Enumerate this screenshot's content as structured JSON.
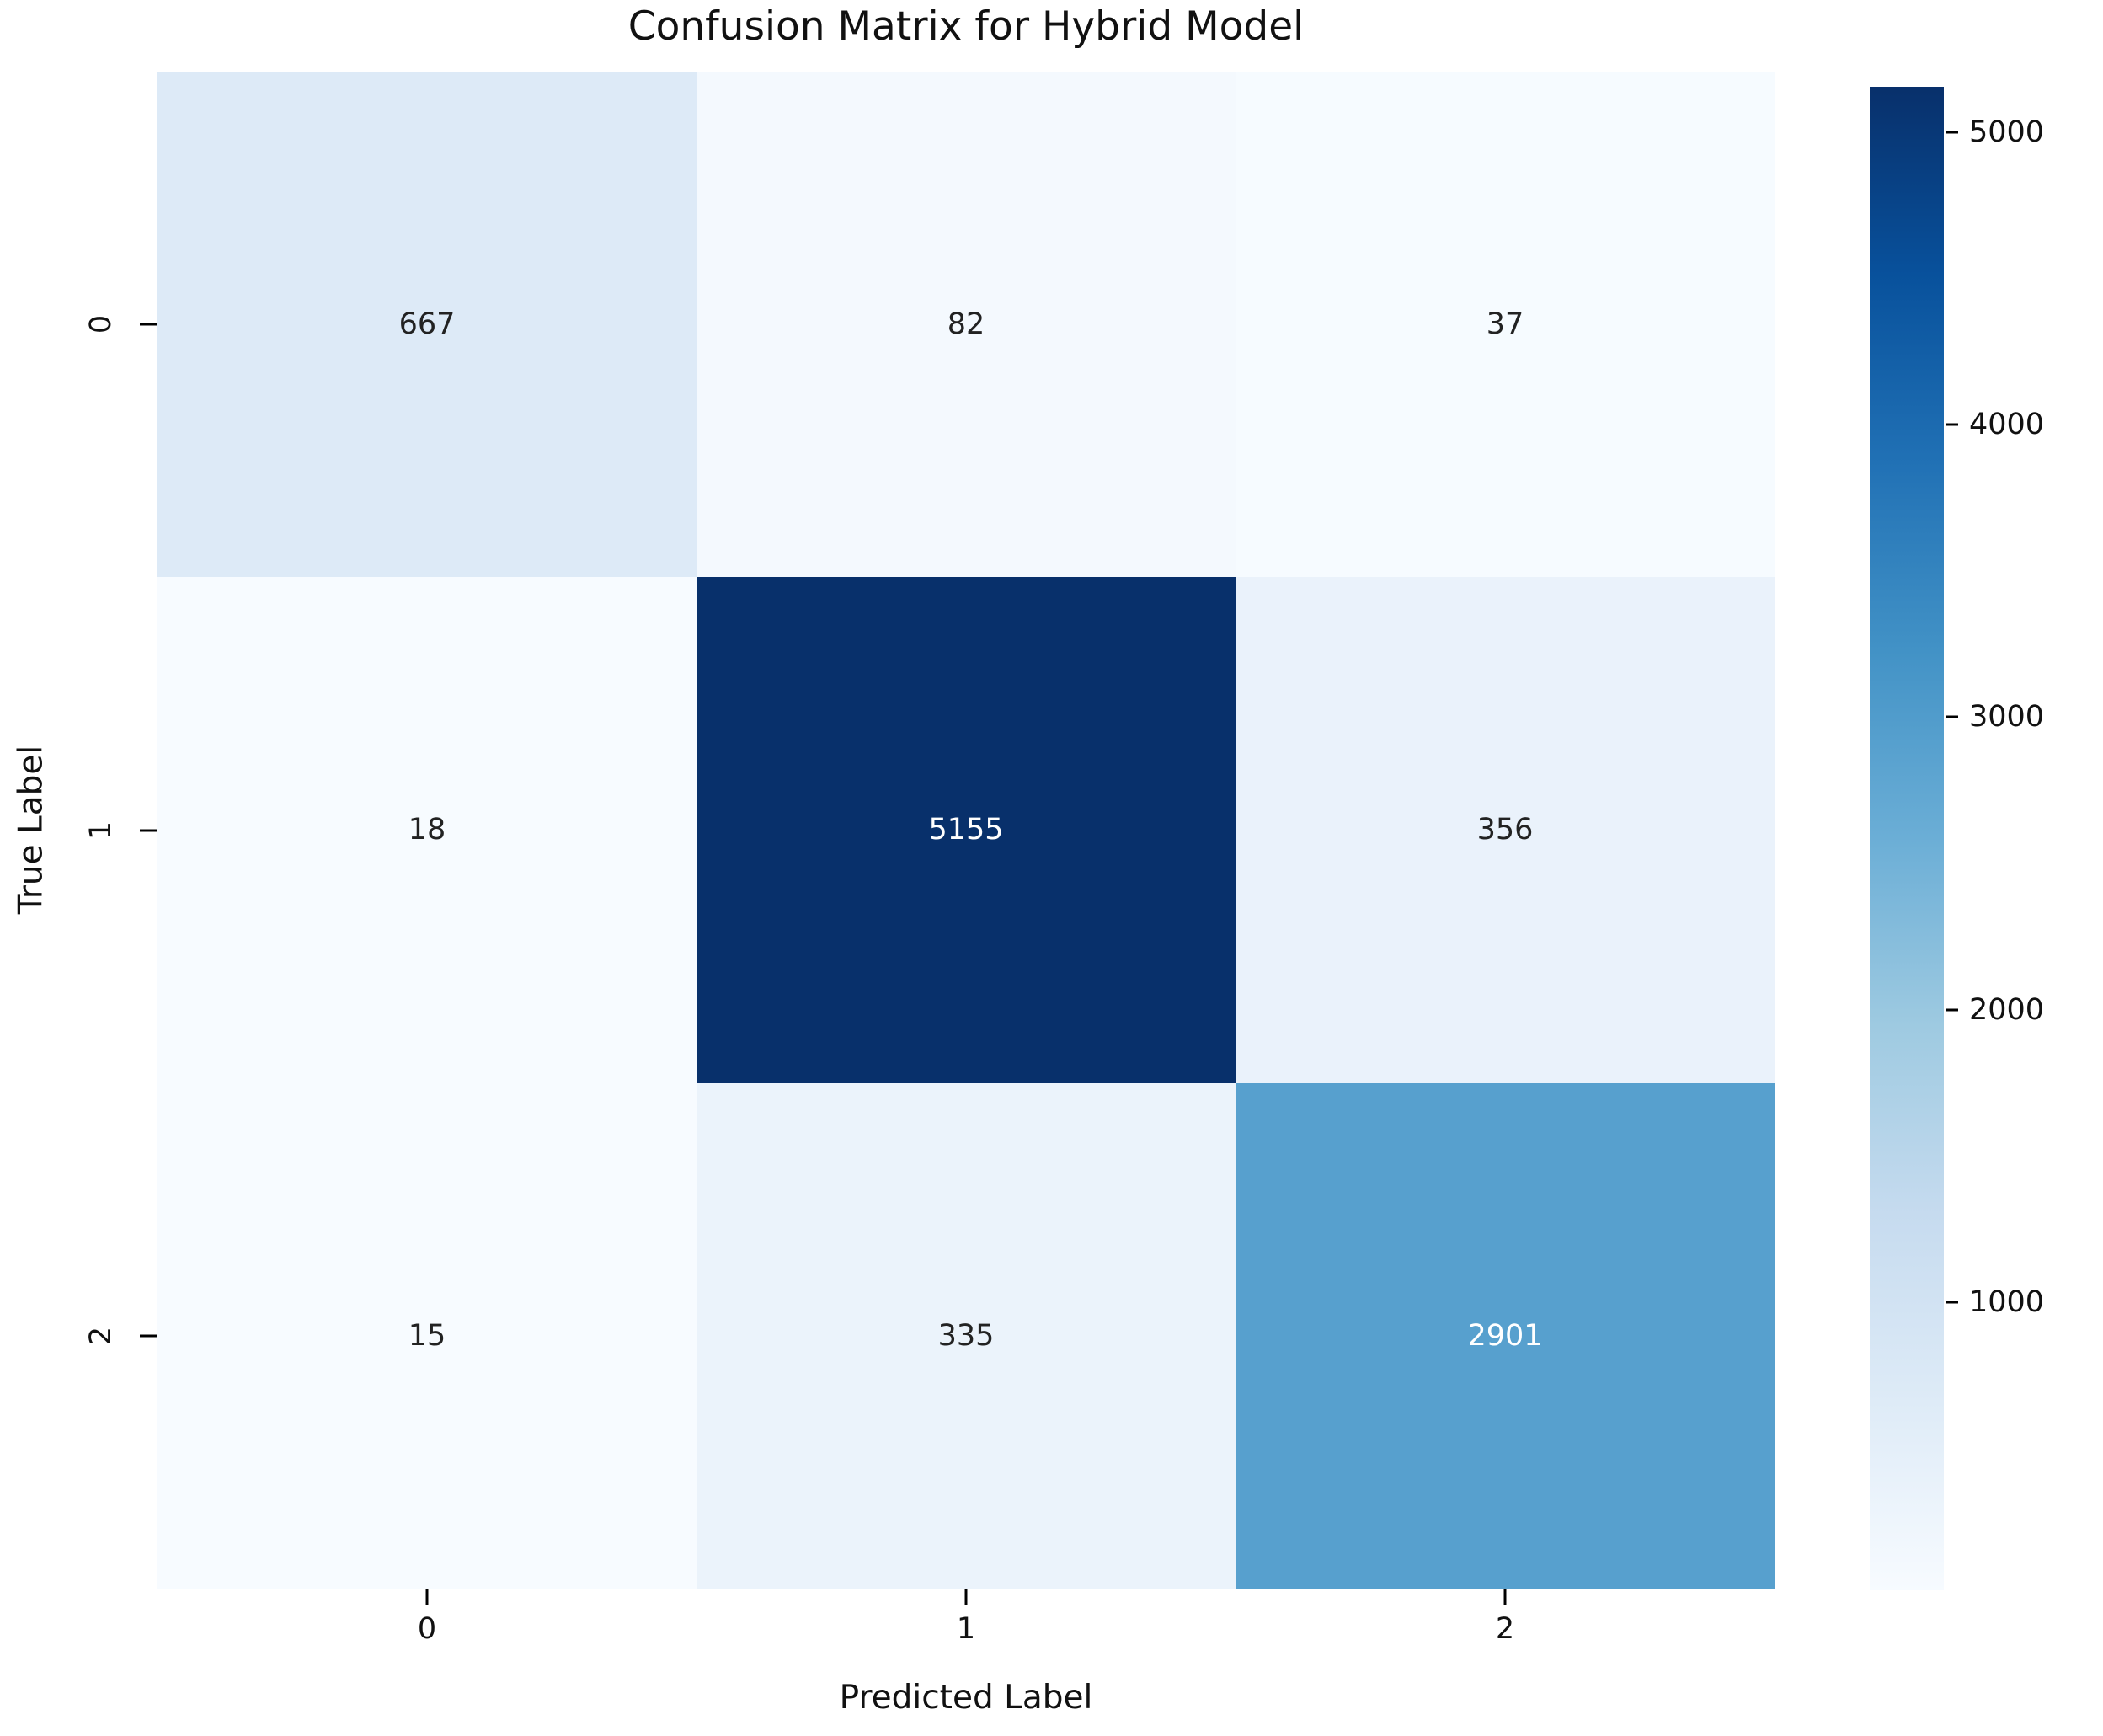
{
  "title": "Confusion Matrix for Hybrid Model",
  "chart_data": {
    "type": "heatmap",
    "title": "Confusion Matrix for Hybrid Model",
    "xlabel": "Predicted Label",
    "ylabel": "True Label",
    "x_tick_labels": [
      "0",
      "1",
      "2"
    ],
    "y_tick_labels": [
      "0",
      "1",
      "2"
    ],
    "matrix": [
      [
        667,
        82,
        37
      ],
      [
        18,
        5155,
        356
      ],
      [
        15,
        335,
        2901
      ]
    ],
    "colormap": "Blues",
    "vmin": 15,
    "vmax": 5155,
    "colorbar_ticks": [
      1000,
      2000,
      3000,
      4000,
      5000
    ],
    "legend_position": "right",
    "grid": false
  },
  "colors": {
    "background": "#ffffff",
    "axis_text": "#111111",
    "annotation_dark": "#222222",
    "annotation_light": "#ffffff",
    "cell_colors": [
      [
        "#ddeaf7",
        "#f4f9fe",
        "#f6fbff"
      ],
      [
        "#f7fbff",
        "#08306b",
        "#eaf2fb"
      ],
      [
        "#f7fbff",
        "#ebf3fb",
        "#57a0ce"
      ]
    ],
    "cell_text_colors": [
      [
        "#222222",
        "#222222",
        "#222222"
      ],
      [
        "#222222",
        "#ffffff",
        "#222222"
      ],
      [
        "#222222",
        "#222222",
        "#ffffff"
      ]
    ],
    "colorbar_stops_bottom_to_top": [
      "#f7fbff",
      "#deebf7",
      "#c6dbef",
      "#9ecae1",
      "#6baed6",
      "#4292c6",
      "#2171b5",
      "#08519c",
      "#08306b"
    ]
  }
}
